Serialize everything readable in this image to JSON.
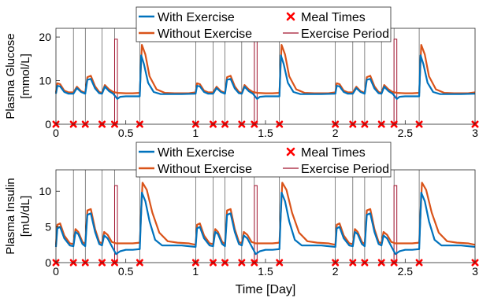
{
  "figure": {
    "xlabel": "Time [Day]",
    "colors": {
      "with_exercise": "#0072BD",
      "without_exercise": "#D95319",
      "meal_marker": "#FF0000",
      "exercise_period": "#A2142F",
      "meal_line": "#000000"
    }
  },
  "chart_data": [
    {
      "type": "line",
      "ylabel_lines": [
        "Plasma Glucose",
        "[mmol/L]"
      ],
      "xlim": [
        0,
        3
      ],
      "ylim": [
        0,
        22
      ],
      "xticks": [
        0,
        0.5,
        1,
        1.5,
        2,
        2.5,
        3
      ],
      "xtick_labels": [
        "0",
        "0.5",
        "1",
        "1.5",
        "2",
        "2.5",
        "3"
      ],
      "yticks": [
        0,
        10,
        20
      ],
      "ytick_labels": [
        "0",
        "10",
        "20"
      ],
      "grid": false,
      "legend": {
        "placement": "top",
        "entries": [
          "With Exercise",
          "Meal Times",
          "Without Exercise",
          "Exercise Period"
        ]
      },
      "meal_times": [
        0,
        0.125,
        0.21,
        0.33,
        0.42,
        0.6,
        1.0,
        1.125,
        1.21,
        1.33,
        1.42,
        1.6,
        2.0,
        2.125,
        2.21,
        2.33,
        2.42,
        2.6,
        3.0
      ],
      "exercise_periods": [
        [
          0.42,
          0.44,
          19.5
        ],
        [
          1.42,
          1.44,
          19.5
        ],
        [
          2.42,
          2.44,
          19.5
        ]
      ],
      "series": [
        {
          "name": "With Exercise",
          "x": [
            0,
            0.01,
            0.03,
            0.06,
            0.09,
            0.125,
            0.15,
            0.18,
            0.21,
            0.225,
            0.25,
            0.28,
            0.31,
            0.33,
            0.35,
            0.38,
            0.41,
            0.44,
            0.46,
            0.5,
            0.55,
            0.6,
            0.61,
            0.63,
            0.66,
            0.7,
            0.75,
            0.8,
            0.9,
            1.0,
            1.01,
            1.03,
            1.06,
            1.09,
            1.125,
            1.15,
            1.18,
            1.21,
            1.225,
            1.25,
            1.28,
            1.31,
            1.33,
            1.35,
            1.38,
            1.41,
            1.44,
            1.46,
            1.5,
            1.55,
            1.6,
            1.61,
            1.63,
            1.66,
            1.7,
            1.75,
            1.8,
            1.9,
            2.0,
            2.01,
            2.03,
            2.06,
            2.09,
            2.125,
            2.15,
            2.18,
            2.21,
            2.225,
            2.25,
            2.28,
            2.31,
            2.33,
            2.35,
            2.38,
            2.41,
            2.44,
            2.46,
            2.5,
            2.55,
            2.6,
            2.61,
            2.63,
            2.66,
            2.7,
            2.75,
            2.8,
            2.9,
            3.0
          ],
          "y": [
            7.0,
            8.8,
            8.7,
            7.4,
            7.0,
            7.0,
            8.3,
            7.4,
            7.0,
            10.2,
            10.4,
            8.2,
            7.1,
            7.0,
            8.6,
            7.6,
            7.0,
            5.8,
            6.3,
            6.4,
            6.4,
            6.4,
            15.8,
            13.8,
            9.5,
            7.4,
            6.9,
            6.9,
            6.9,
            7.0,
            8.8,
            8.7,
            7.4,
            7.0,
            7.0,
            8.3,
            7.4,
            7.0,
            10.2,
            10.4,
            8.2,
            7.1,
            7.0,
            8.6,
            7.6,
            7.0,
            5.8,
            6.3,
            6.4,
            6.4,
            6.4,
            15.8,
            13.8,
            9.5,
            7.4,
            6.9,
            6.9,
            6.9,
            7.0,
            8.8,
            8.7,
            7.4,
            7.0,
            7.0,
            8.3,
            7.4,
            7.0,
            10.2,
            10.4,
            8.2,
            7.1,
            7.0,
            8.6,
            7.6,
            7.0,
            5.8,
            6.3,
            6.4,
            6.4,
            6.4,
            15.8,
            13.8,
            9.5,
            7.4,
            6.9,
            6.9,
            6.9,
            7.0
          ]
        },
        {
          "name": "Without Exercise",
          "x": [
            0,
            0.01,
            0.03,
            0.06,
            0.09,
            0.125,
            0.15,
            0.18,
            0.21,
            0.225,
            0.25,
            0.28,
            0.31,
            0.33,
            0.35,
            0.38,
            0.41,
            0.44,
            0.5,
            0.55,
            0.6,
            0.615,
            0.64,
            0.67,
            0.72,
            0.78,
            0.85,
            0.95,
            1.0,
            1.01,
            1.03,
            1.06,
            1.09,
            1.125,
            1.15,
            1.18,
            1.21,
            1.225,
            1.25,
            1.28,
            1.31,
            1.33,
            1.35,
            1.38,
            1.41,
            1.44,
            1.5,
            1.55,
            1.6,
            1.615,
            1.64,
            1.67,
            1.72,
            1.78,
            1.85,
            1.95,
            2.0,
            2.01,
            2.03,
            2.06,
            2.09,
            2.125,
            2.15,
            2.18,
            2.21,
            2.225,
            2.25,
            2.28,
            2.31,
            2.33,
            2.35,
            2.38,
            2.41,
            2.44,
            2.5,
            2.55,
            2.6,
            2.615,
            2.64,
            2.67,
            2.72,
            2.78,
            2.85,
            2.95,
            3.0
          ],
          "y": [
            7.3,
            9.4,
            9.2,
            7.7,
            7.3,
            7.3,
            8.6,
            7.6,
            7.2,
            10.8,
            11.1,
            8.7,
            7.4,
            7.2,
            9.0,
            8.0,
            7.4,
            7.2,
            7.1,
            7.1,
            7.2,
            18.2,
            16.0,
            11.0,
            8.0,
            7.2,
            7.1,
            7.1,
            7.3,
            9.4,
            9.2,
            7.7,
            7.3,
            7.3,
            8.6,
            7.6,
            7.2,
            10.8,
            11.1,
            8.7,
            7.4,
            7.2,
            9.0,
            8.0,
            7.4,
            7.2,
            7.1,
            7.1,
            7.2,
            18.2,
            16.0,
            11.0,
            8.0,
            7.2,
            7.1,
            7.1,
            7.3,
            9.4,
            9.2,
            7.7,
            7.3,
            7.3,
            8.6,
            7.6,
            7.2,
            10.8,
            11.1,
            8.7,
            7.4,
            7.2,
            9.0,
            8.0,
            7.4,
            7.2,
            7.1,
            7.1,
            7.2,
            18.2,
            16.0,
            11.0,
            8.0,
            7.2,
            7.1,
            7.1,
            7.3
          ]
        }
      ]
    },
    {
      "type": "line",
      "ylabel_lines": [
        "Plasma Insulin",
        "[mU/dL]"
      ],
      "xlim": [
        0,
        3
      ],
      "ylim": [
        0,
        13
      ],
      "xticks": [
        0,
        0.5,
        1,
        1.5,
        2,
        2.5,
        3
      ],
      "xtick_labels": [
        "0",
        "0.5",
        "1",
        "1.5",
        "2",
        "2.5",
        "3"
      ],
      "yticks": [
        0,
        5,
        10
      ],
      "ytick_labels": [
        "0",
        "5",
        "10"
      ],
      "grid": false,
      "legend": {
        "placement": "top",
        "entries": [
          "With Exercise",
          "Meal Times",
          "Without Exercise",
          "Exercise Period"
        ]
      },
      "meal_times": [
        0,
        0.125,
        0.21,
        0.33,
        0.42,
        0.6,
        1.0,
        1.125,
        1.21,
        1.33,
        1.42,
        1.6,
        2.0,
        2.125,
        2.21,
        2.33,
        2.42,
        2.6,
        3.0
      ],
      "exercise_periods": [
        [
          0.42,
          0.44,
          10.8
        ],
        [
          1.42,
          1.44,
          10.8
        ],
        [
          2.42,
          2.44,
          10.8
        ]
      ],
      "series": [
        {
          "name": "With Exercise",
          "x": [
            0,
            0.01,
            0.03,
            0.06,
            0.1,
            0.125,
            0.14,
            0.16,
            0.19,
            0.21,
            0.225,
            0.25,
            0.28,
            0.31,
            0.33,
            0.345,
            0.37,
            0.4,
            0.43,
            0.46,
            0.5,
            0.55,
            0.6,
            0.615,
            0.64,
            0.67,
            0.71,
            0.76,
            0.82,
            0.9,
            1.0,
            1.01,
            1.03,
            1.06,
            1.1,
            1.125,
            1.14,
            1.16,
            1.19,
            1.21,
            1.225,
            1.25,
            1.28,
            1.31,
            1.33,
            1.345,
            1.37,
            1.4,
            1.43,
            1.46,
            1.5,
            1.55,
            1.6,
            1.615,
            1.64,
            1.67,
            1.71,
            1.76,
            1.82,
            1.9,
            2.0,
            2.01,
            2.03,
            2.06,
            2.1,
            2.125,
            2.14,
            2.16,
            2.19,
            2.21,
            2.225,
            2.25,
            2.28,
            2.31,
            2.33,
            2.345,
            2.37,
            2.4,
            2.43,
            2.46,
            2.5,
            2.55,
            2.6,
            2.615,
            2.64,
            2.67,
            2.71,
            2.76,
            2.82,
            2.9,
            3.0
          ],
          "y": [
            2.2,
            4.8,
            5.0,
            3.4,
            2.4,
            2.3,
            4.3,
            4.0,
            2.6,
            2.3,
            6.7,
            6.9,
            4.3,
            2.6,
            2.4,
            3.8,
            3.4,
            2.3,
            1.2,
            1.6,
            1.8,
            1.8,
            1.9,
            9.8,
            8.6,
            5.8,
            3.2,
            2.4,
            2.4,
            2.4,
            2.2,
            4.8,
            5.0,
            3.4,
            2.4,
            2.3,
            4.3,
            4.0,
            2.6,
            2.3,
            6.7,
            6.9,
            4.3,
            2.6,
            2.4,
            3.8,
            3.4,
            2.3,
            1.2,
            1.6,
            1.8,
            1.8,
            1.9,
            9.8,
            8.6,
            5.8,
            3.2,
            2.4,
            2.4,
            2.4,
            2.2,
            4.8,
            5.0,
            3.4,
            2.4,
            2.3,
            4.3,
            4.0,
            2.6,
            2.3,
            6.7,
            6.9,
            4.3,
            2.6,
            2.4,
            3.8,
            3.4,
            2.3,
            1.2,
            1.6,
            1.8,
            1.8,
            1.9,
            9.8,
            8.6,
            5.8,
            3.2,
            2.4,
            2.4,
            2.4,
            2.2
          ]
        },
        {
          "name": "Without Exercise",
          "x": [
            0,
            0.01,
            0.03,
            0.06,
            0.1,
            0.125,
            0.14,
            0.16,
            0.19,
            0.21,
            0.225,
            0.25,
            0.28,
            0.31,
            0.33,
            0.345,
            0.37,
            0.4,
            0.43,
            0.46,
            0.5,
            0.55,
            0.6,
            0.62,
            0.65,
            0.69,
            0.74,
            0.8,
            0.87,
            0.95,
            1.0,
            1.01,
            1.03,
            1.06,
            1.1,
            1.125,
            1.14,
            1.16,
            1.19,
            1.21,
            1.225,
            1.25,
            1.28,
            1.31,
            1.33,
            1.345,
            1.37,
            1.4,
            1.43,
            1.46,
            1.5,
            1.55,
            1.6,
            1.62,
            1.65,
            1.69,
            1.74,
            1.8,
            1.87,
            1.95,
            2.0,
            2.01,
            2.03,
            2.06,
            2.1,
            2.125,
            2.14,
            2.16,
            2.19,
            2.21,
            2.225,
            2.25,
            2.28,
            2.31,
            2.33,
            2.345,
            2.37,
            2.4,
            2.43,
            2.46,
            2.5,
            2.55,
            2.6,
            2.62,
            2.65,
            2.69,
            2.74,
            2.8,
            2.87,
            2.95,
            3.0
          ],
          "y": [
            2.5,
            5.3,
            5.5,
            3.8,
            2.7,
            2.6,
            4.7,
            4.3,
            2.9,
            2.6,
            7.3,
            7.5,
            4.7,
            2.9,
            2.7,
            4.3,
            3.9,
            2.9,
            2.7,
            2.7,
            2.7,
            2.7,
            2.8,
            11.2,
            10.2,
            7.0,
            4.2,
            3.0,
            2.8,
            2.7,
            2.5,
            5.3,
            5.5,
            3.8,
            2.7,
            2.6,
            4.7,
            4.3,
            2.9,
            2.6,
            7.3,
            7.5,
            4.7,
            2.9,
            2.7,
            4.3,
            3.9,
            2.9,
            2.7,
            2.7,
            2.7,
            2.7,
            2.8,
            11.2,
            10.2,
            7.0,
            4.2,
            3.0,
            2.8,
            2.7,
            2.5,
            5.3,
            5.5,
            3.8,
            2.7,
            2.6,
            4.7,
            4.3,
            2.9,
            2.6,
            7.3,
            7.5,
            4.7,
            2.9,
            2.7,
            4.3,
            3.9,
            2.9,
            2.7,
            2.7,
            2.7,
            2.7,
            2.8,
            11.2,
            10.2,
            7.0,
            4.2,
            3.0,
            2.8,
            2.7,
            2.5
          ]
        }
      ]
    }
  ]
}
